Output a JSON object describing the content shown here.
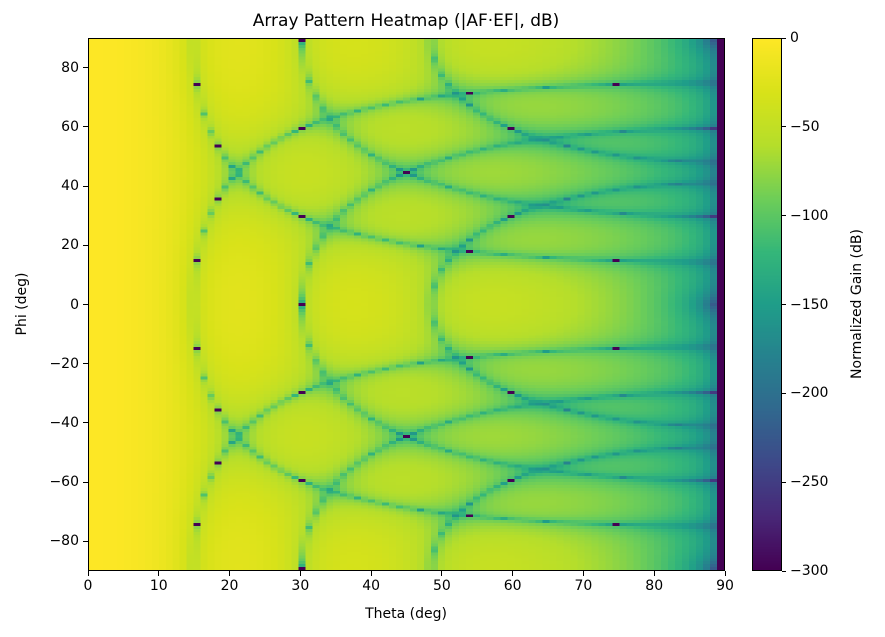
{
  "chart_data": {
    "type": "heatmap",
    "title": "Array Pattern Heatmap (|AF·EF|, dB)",
    "xlabel": "Theta (deg)",
    "ylabel": "Phi (deg)",
    "x": {
      "min": 0,
      "max": 90,
      "step_deg": 1,
      "ticks": [
        {
          "v": 0,
          "label": "0"
        },
        {
          "v": 10,
          "label": "10"
        },
        {
          "v": 20,
          "label": "20"
        },
        {
          "v": 30,
          "label": "30"
        },
        {
          "v": 40,
          "label": "40"
        },
        {
          "v": 50,
          "label": "50"
        },
        {
          "v": 60,
          "label": "60"
        },
        {
          "v": 70,
          "label": "70"
        },
        {
          "v": 80,
          "label": "80"
        },
        {
          "v": 90,
          "label": "90"
        }
      ]
    },
    "y": {
      "min": -90,
      "max": 90,
      "step_deg": 1,
      "ticks": [
        {
          "v": 80,
          "label": "80"
        },
        {
          "v": 60,
          "label": "60"
        },
        {
          "v": 40,
          "label": "40"
        },
        {
          "v": 20,
          "label": "20"
        },
        {
          "v": 0,
          "label": "0"
        },
        {
          "v": -20,
          "label": "−20"
        },
        {
          "v": -40,
          "label": "−40"
        },
        {
          "v": -60,
          "label": "−60"
        },
        {
          "v": -80,
          "label": "−80"
        }
      ]
    },
    "colorbar": {
      "label": "Normalized Gain (dB)",
      "min": -300,
      "max": 0,
      "ticks": [
        {
          "v": 0,
          "label": "0"
        },
        {
          "v": -50,
          "label": "−50"
        },
        {
          "v": -100,
          "label": "−100"
        },
        {
          "v": -150,
          "label": "−150"
        },
        {
          "v": -200,
          "label": "−200"
        },
        {
          "v": -250,
          "label": "−250"
        },
        {
          "v": -300,
          "label": "−300"
        }
      ]
    },
    "colormap": {
      "name": "viridis",
      "stops": [
        "#440154",
        "#482878",
        "#3e4989",
        "#31688e",
        "#26828e",
        "#1f9e89",
        "#35b779",
        "#6ece58",
        "#b5de2b",
        "#d8e219",
        "#fde725"
      ]
    },
    "model": {
      "n_elements": 8,
      "spacing_wavelengths": 0.5,
      "ef_cos_exponent": 3,
      "sidelobe_db_scale": 1.6
    }
  }
}
